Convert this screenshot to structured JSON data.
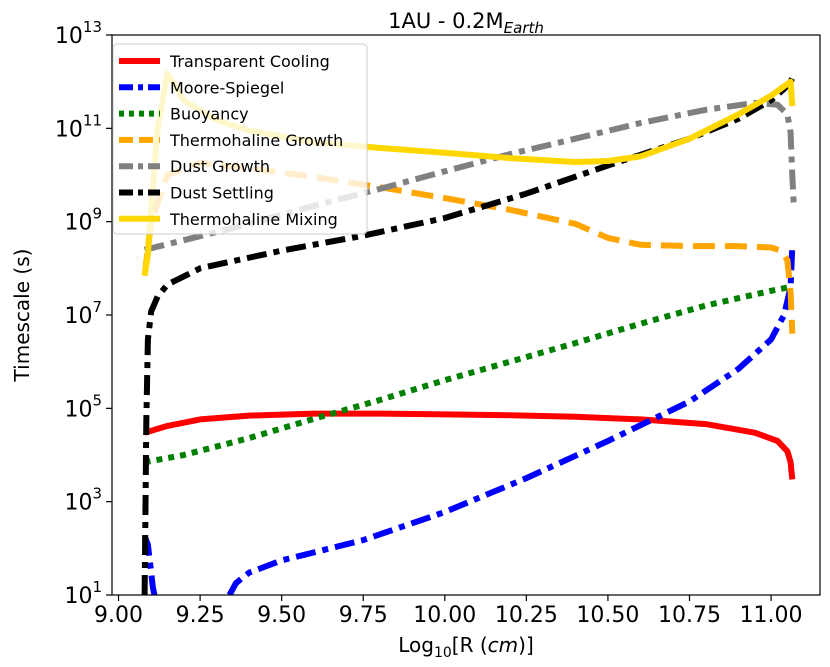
{
  "chart_data": {
    "type": "line",
    "title": {
      "base": "1AU - 0.2M",
      "sub": "Earth"
    },
    "xlabel": {
      "pre": "Log",
      "sub": "10",
      "mid": "[R (",
      "italic": "cm",
      "post": ")]"
    },
    "ylabel": "Timescale (s)",
    "xscale": "linear",
    "yscale": "log",
    "xlim": [
      8.98,
      11.15
    ],
    "ylim": [
      10,
      10000000000000.0
    ],
    "xticks": [
      9.0,
      9.25,
      9.5,
      9.75,
      10.0,
      10.25,
      10.5,
      10.75,
      11.0
    ],
    "xtick_labels": [
      "9.00",
      "9.25",
      "9.50",
      "9.75",
      "10.00",
      "10.25",
      "10.50",
      "10.75",
      "11.00"
    ],
    "yticks": [
      {
        "base": "10",
        "exp": "1",
        "value": 10
      },
      {
        "base": "10",
        "exp": "3",
        "value": 1000
      },
      {
        "base": "10",
        "exp": "5",
        "value": 100000
      },
      {
        "base": "10",
        "exp": "7",
        "value": 10000000
      },
      {
        "base": "10",
        "exp": "9",
        "value": 1000000000
      },
      {
        "base": "10",
        "exp": "11",
        "value": 100000000000
      },
      {
        "base": "10",
        "exp": "13",
        "value": 10000000000000
      }
    ],
    "grid": false,
    "legend_position": "top-left",
    "series": [
      {
        "name": "Transparent Cooling",
        "color": "#ff0000",
        "style": "solid",
        "x": [
          9.08,
          9.15,
          9.25,
          9.4,
          9.6,
          9.8,
          10.0,
          10.2,
          10.4,
          10.6,
          10.8,
          10.95,
          11.02,
          11.05,
          11.06,
          11.065
        ],
        "y": [
          30000,
          42000,
          58000,
          70000,
          77000,
          77000,
          74000,
          71000,
          66000,
          58000,
          46000,
          30000,
          20000,
          12000,
          7000,
          3000
        ]
      },
      {
        "name": "Moore-Spiegel",
        "color": "#0000ff",
        "style": "dashdot",
        "x": [
          9.08,
          9.09,
          9.095,
          9.1,
          9.105,
          9.11
        ],
        "y": [
          180,
          120,
          60,
          30,
          15,
          10
        ],
        "x2": [
          9.34,
          9.36,
          9.4,
          9.5,
          9.75,
          10.0,
          10.25,
          10.5,
          10.75,
          10.9,
          11.0,
          11.04,
          11.06,
          11.065
        ],
        "y2": [
          10,
          18,
          30,
          55,
          150,
          600,
          3200,
          20000,
          140000,
          700000,
          3000000,
          10000000,
          40000000,
          300000000
        ]
      },
      {
        "name": "Buoyancy",
        "color": "#008000",
        "style": "dotted",
        "x": [
          9.08,
          9.2,
          9.4,
          9.6,
          9.8,
          10.0,
          10.2,
          10.4,
          10.6,
          10.8,
          11.0,
          11.06
        ],
        "y": [
          7000,
          10000,
          23000,
          60000,
          150000,
          400000,
          1000000,
          2500000,
          6500000,
          16000000,
          33000000,
          40000000
        ]
      },
      {
        "name": "Thermohaline Growth",
        "color": "#ffa500",
        "style": "dashed",
        "x": [
          9.08,
          9.1,
          9.15,
          9.25,
          9.4,
          9.6,
          9.8,
          10.0,
          10.2,
          10.4,
          10.5,
          10.6,
          10.75,
          10.9,
          11.0,
          11.03,
          11.05,
          11.06,
          11.065
        ],
        "y": [
          70000000,
          1000000000,
          10000000000,
          18000000000,
          14000000000,
          9000000000,
          5500000000,
          3200000000,
          1800000000,
          900000000,
          450000000,
          320000000,
          300000000,
          300000000,
          280000000,
          240000000,
          150000000,
          30000000,
          4000000
        ]
      },
      {
        "name": "Dust Growth",
        "color": "#808080",
        "style": "dashdot",
        "x": [
          9.08,
          9.2,
          9.4,
          9.6,
          9.8,
          10.0,
          10.2,
          10.4,
          10.6,
          10.8,
          10.95,
          11.02,
          11.05,
          11.06,
          11.065,
          11.07
        ],
        "y": [
          250000000,
          400000000,
          900000000,
          2200000000,
          5000000000,
          12000000000,
          28000000000,
          60000000000,
          130000000000,
          250000000000,
          350000000000,
          320000000000,
          200000000000,
          80000000000,
          10000000000,
          2000000000
        ]
      },
      {
        "name": "Dust Settling",
        "color": "#000000",
        "style": "dashdot",
        "x": [
          9.08,
          9.082,
          9.085,
          9.09,
          9.1,
          9.12,
          9.15,
          9.25,
          9.5,
          9.75,
          10.0,
          10.25,
          10.5,
          10.75,
          10.9,
          11.0,
          11.04,
          11.06,
          11.065
        ],
        "y": [
          10,
          300,
          50000,
          3000000,
          12000000,
          25000000,
          45000000,
          100000000,
          240000000,
          500000000,
          1200000000,
          4000000000,
          16000000000,
          60000000000,
          160000000000,
          400000000000,
          700000000000,
          1000000000000,
          1200000000000
        ]
      },
      {
        "name": "Thermohaline Mixing",
        "color": "#ffd700",
        "style": "solid",
        "x": [
          9.08,
          9.09,
          9.1,
          9.12,
          9.15,
          9.2,
          9.3,
          9.4,
          9.6,
          9.8,
          10.0,
          10.2,
          10.4,
          10.5,
          10.6,
          10.75,
          10.9,
          11.0,
          11.04,
          11.06,
          11.065
        ],
        "y": [
          70000000,
          200000000,
          2000000000,
          100000000000,
          1500000000000,
          400000000000,
          150000000000,
          90000000000,
          50000000000,
          38000000000,
          30000000000,
          23000000000,
          19000000000,
          20000000000,
          25000000000,
          60000000000,
          200000000000,
          500000000000,
          800000000000,
          1000000000000,
          300000000000
        ]
      }
    ]
  }
}
